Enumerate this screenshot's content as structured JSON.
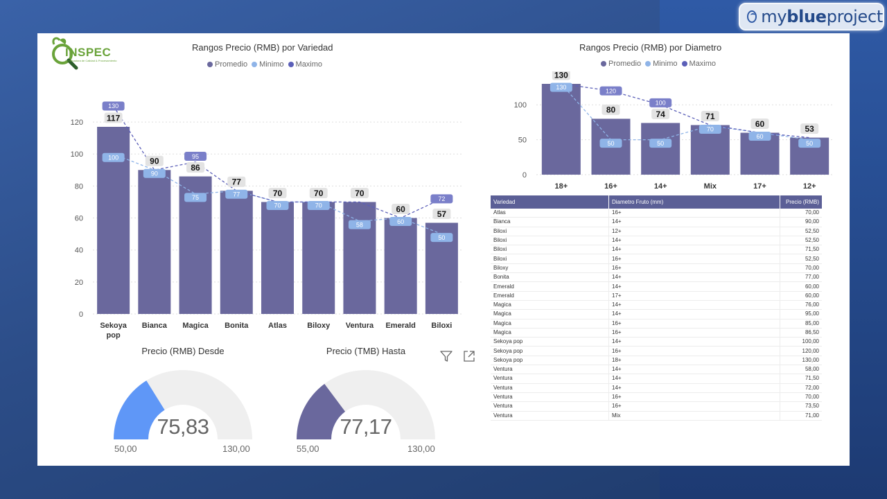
{
  "brand": {
    "prefix": "my",
    "bold": "blue",
    "suffix": "project"
  },
  "logo": {
    "text": "INSPEC",
    "letter": "Q",
    "tagline": "Certificadora de Calidad & Procesamiento"
  },
  "chart1_title": "Rangos Precio (RMB) por Variedad",
  "chart2_title": "Rangos Precio (RMB) por Diametro",
  "legend": {
    "promedio": "Promedio",
    "minimo": "Minimo",
    "maximo": "Maximo"
  },
  "colors": {
    "promedio": "#6a689d",
    "minimo": "#8fb4e8",
    "maximo": "#5b5fb8",
    "max_label_bg": "#7a7fc9"
  },
  "chart_data": [
    {
      "type": "bar",
      "title": "Rangos Precio (RMB) por Variedad",
      "categories": [
        "Sekoya pop",
        "Bianca",
        "Magica",
        "Bonita",
        "Atlas",
        "Biloxy",
        "Ventura",
        "Emerald",
        "Biloxi"
      ],
      "series": [
        {
          "name": "Promedio",
          "values": [
            117,
            90,
            86,
            77,
            70,
            70,
            70,
            60,
            57
          ]
        },
        {
          "name": "Minimo",
          "values": [
            100,
            90,
            75,
            77,
            70,
            70,
            58,
            60,
            50
          ]
        },
        {
          "name": "Maximo",
          "values": [
            130,
            90,
            95,
            77,
            70,
            70,
            70,
            60,
            72
          ]
        }
      ],
      "max_labels_shown": [
        130,
        null,
        95,
        null,
        null,
        null,
        null,
        null,
        72
      ],
      "yticks": [
        0,
        20,
        40,
        60,
        80,
        100,
        120
      ],
      "ylim": [
        0,
        130
      ]
    },
    {
      "type": "bar",
      "title": "Rangos Precio (RMB) por Diametro",
      "categories": [
        "18+",
        "16+",
        "14+",
        "Mix",
        "17+",
        "12+"
      ],
      "series": [
        {
          "name": "Promedio",
          "values": [
            130,
            80,
            74,
            71,
            60,
            53
          ]
        },
        {
          "name": "Minimo",
          "values": [
            130,
            50,
            50,
            70,
            60,
            50
          ]
        },
        {
          "name": "Maximo",
          "values": [
            130,
            120,
            100,
            71,
            60,
            53
          ]
        }
      ],
      "max_labels_shown": [
        null,
        120,
        100,
        null,
        null,
        null
      ],
      "yticks": [
        0,
        50,
        100
      ],
      "ylim": [
        0,
        130
      ]
    }
  ],
  "gauge1": {
    "title": "Precio (RMB) Desde",
    "value": "75,83",
    "min": "50,00",
    "max": "130,00",
    "fraction": 0.323,
    "color": "#5f97f7"
  },
  "gauge2": {
    "title": "Precio (TMB) Hasta",
    "value": "77,17",
    "min": "55,00",
    "max": "130,00",
    "fraction": 0.296,
    "color": "#6a689d"
  },
  "table": {
    "headers": [
      "Variedad",
      "Diametro Fruto (mm)",
      "Precio (RMB)"
    ],
    "rows": [
      [
        "Atlas",
        "16+",
        "70,00"
      ],
      [
        "Bianca",
        "14+",
        "90,00"
      ],
      [
        "Biloxi",
        "12+",
        "52,50"
      ],
      [
        "Biloxi",
        "14+",
        "52,50"
      ],
      [
        "Biloxi",
        "14+",
        "71,50"
      ],
      [
        "Biloxi",
        "16+",
        "52,50"
      ],
      [
        "Biloxy",
        "16+",
        "70,00"
      ],
      [
        "Bonita",
        "14+",
        "77,00"
      ],
      [
        "Emerald",
        "14+",
        "60,00"
      ],
      [
        "Emerald",
        "17+",
        "60,00"
      ],
      [
        "Magica",
        "14+",
        "76,00"
      ],
      [
        "Magica",
        "14+",
        "95,00"
      ],
      [
        "Magica",
        "16+",
        "85,00"
      ],
      [
        "Magica",
        "16+",
        "86,50"
      ],
      [
        "Sekoya pop",
        "14+",
        "100,00"
      ],
      [
        "Sekoya pop",
        "16+",
        "120,00"
      ],
      [
        "Sekoya pop",
        "18+",
        "130,00"
      ],
      [
        "Ventura",
        "14+",
        "58,00"
      ],
      [
        "Ventura",
        "14+",
        "71,50"
      ],
      [
        "Ventura",
        "14+",
        "72,00"
      ],
      [
        "Ventura",
        "16+",
        "70,00"
      ],
      [
        "Ventura",
        "16+",
        "73,50"
      ],
      [
        "Ventura",
        "Mix",
        "71,00"
      ]
    ]
  }
}
